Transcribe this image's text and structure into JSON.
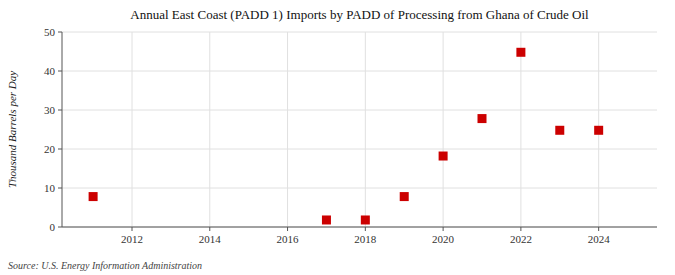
{
  "chart_data": {
    "type": "scatter",
    "title": "Annual East Coast (PADD 1) Imports by PADD of Processing from Ghana of Crude Oil",
    "ylabel": "Thousand Barrels per Day",
    "source": "Source: U.S. Energy Information Administration",
    "x": [
      2011,
      2017,
      2018,
      2019,
      2020,
      2021,
      2022,
      2023,
      2024
    ],
    "values": [
      7.8,
      1.8,
      1.8,
      7.8,
      18.2,
      27.8,
      44.8,
      24.8,
      24.8
    ],
    "color": "#cc0000",
    "marker": "square",
    "xlim": [
      2010.2,
      2025.5
    ],
    "ylim": [
      0,
      50
    ],
    "xticks": [
      2012,
      2014,
      2016,
      2018,
      2020,
      2022,
      2024
    ],
    "yticks": [
      0,
      10,
      20,
      30,
      40,
      50
    ],
    "grid": true
  }
}
